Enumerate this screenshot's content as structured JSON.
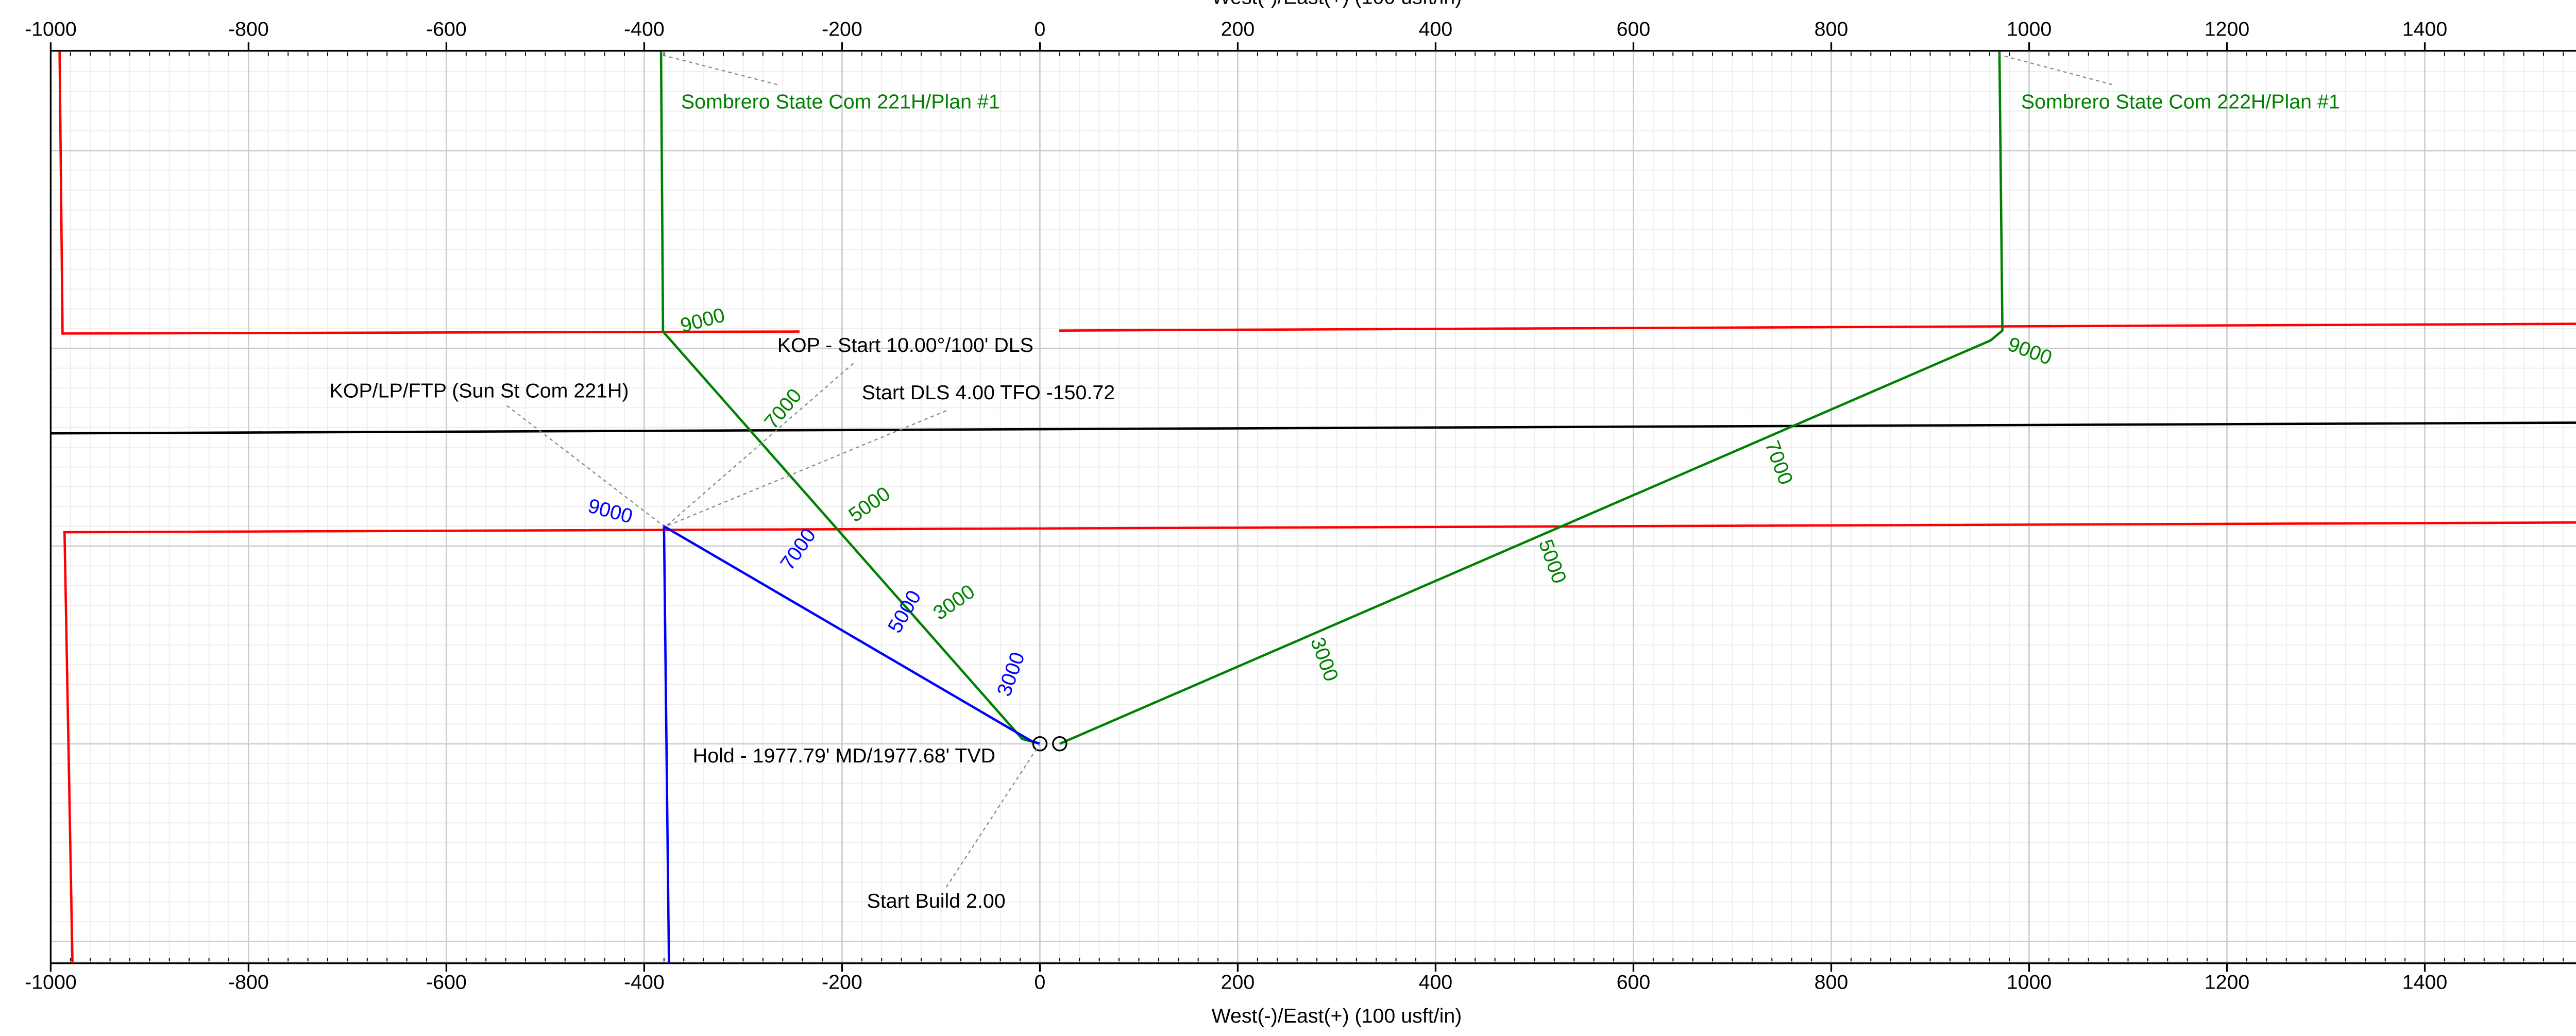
{
  "chart_data": {
    "type": "line",
    "x_label": "West(-)/East(+) (100 usft/in)",
    "xlim": [
      -1000,
      1600
    ],
    "ylim": [
      -222,
      701
    ],
    "xticks": [
      -1000,
      -800,
      -600,
      -400,
      -200,
      0,
      200,
      400,
      600,
      800,
      1000,
      1200,
      1400,
      1600
    ],
    "yticks": [
      -200,
      0,
      200,
      400,
      600
    ],
    "grid": true,
    "series": [
      {
        "color": "#ff0000",
        "x": [
          -991,
          -988,
          -243
        ],
        "values": [
          700,
          415,
          417
        ]
      },
      {
        "color": "#ff0000",
        "x": [
          19.6,
          1600
        ],
        "values": [
          418,
          425
        ]
      },
      {
        "color": "#ff0000",
        "x": [
          -978,
          -986,
          1600
        ],
        "values": [
          -222,
          214,
          224
        ]
      },
      {
        "color": "#000000",
        "x": [
          -1000,
          1600
        ],
        "values": [
          314,
          325
        ]
      },
      {
        "name": "Sombrero State Com 221H/Plan #1",
        "color": "#008000",
        "x": [
          -383,
          -381,
          -18,
          0
        ],
        "values": [
          700,
          417,
          5,
          0
        ]
      },
      {
        "name": "Sombrero State Com 222H/Plan #1",
        "color": "#008000",
        "x": [
          970,
          973,
          961,
          20
        ],
        "values": [
          700,
          418,
          408,
          0
        ]
      },
      {
        "color": "#0000ff",
        "x": [
          -375,
          -380,
          -9,
          0
        ],
        "values": [
          -222,
          220,
          3,
          0
        ]
      }
    ],
    "markers": {
      "x": [
        0,
        20
      ],
      "y": [
        0,
        0
      ]
    },
    "depth_labels": [
      {
        "text": 9000,
        "x": -340.6,
        "y": 427,
        "color": "#008000"
      },
      {
        "text": 7000,
        "x": -258.6,
        "y": 338,
        "color": "#008000"
      },
      {
        "text": 5000,
        "x": -171.5,
        "y": 241,
        "color": "#008000"
      },
      {
        "text": 3000,
        "x": -86.1,
        "y": 142,
        "color": "#008000"
      },
      {
        "text": 9000,
        "x": 1000.3,
        "y": 396,
        "color": "#008000"
      },
      {
        "text": 7000,
        "x": 745.8,
        "y": 284,
        "color": "#008000"
      },
      {
        "text": 5000,
        "x": 516.9,
        "y": 184,
        "color": "#008000"
      },
      {
        "text": 3000,
        "x": 286.3,
        "y": 85,
        "color": "#008000"
      },
      {
        "text": 9000,
        "x": -434.6,
        "y": 234,
        "color": "#0000ff"
      },
      {
        "text": 7000,
        "x": -243.3,
        "y": 196,
        "color": "#0000ff"
      },
      {
        "text": 5000,
        "x": -135.7,
        "y": 133,
        "color": "#0000ff"
      },
      {
        "text": 3000,
        "x": -28.0,
        "y": 70,
        "color": "#0000ff"
      }
    ],
    "annotations": [
      {
        "text": "Sombrero State Com 221H/Plan #1",
        "x": -383,
        "y": 697,
        "color": "#008000"
      },
      {
        "text": "Sombrero State Com 222H/Plan #1",
        "x": 970,
        "y": 697,
        "color": "#008000"
      },
      {
        "text": "KOP - Start 10.00°/100' DLS",
        "x": -378,
        "y": 220,
        "color": "#000000"
      },
      {
        "text": "KOP/LP/FTP (Sun St Com 221H)",
        "x": -380,
        "y": 220,
        "color": "#000000"
      },
      {
        "text": "Start DLS 4.00 TFO -150.72",
        "x": -378,
        "y": 220,
        "color": "#000000"
      },
      {
        "text": "Hold - 1977.79' MD/1977.68' TVD",
        "x": 0,
        "y": 0,
        "color": "#000000"
      },
      {
        "text": "Start Build 2.00",
        "x": 0,
        "y": 0,
        "color": "#000000"
      }
    ]
  }
}
